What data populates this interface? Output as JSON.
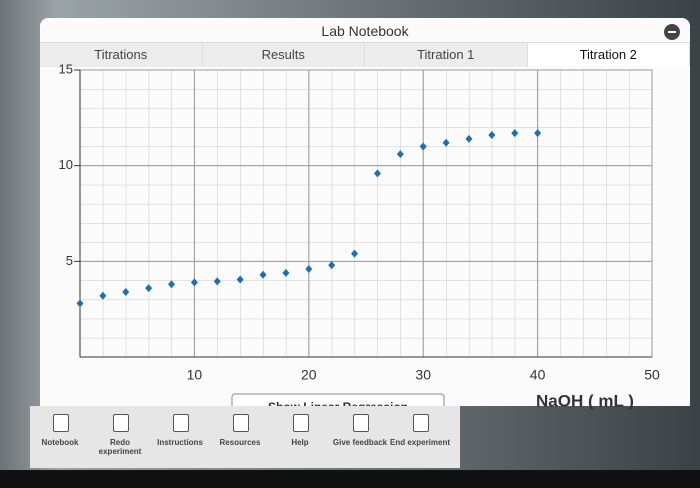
{
  "window": {
    "title": "Lab Notebook",
    "tabs": [
      "Titrations",
      "Results",
      "Titration 1",
      "Titration 2"
    ],
    "active_tab": 3
  },
  "chart_data": {
    "type": "scatter",
    "x_label": "NaOH ( mL )",
    "button": "Show Linear Regression",
    "xlim": [
      0,
      50
    ],
    "xticks": [
      10,
      20,
      30,
      40,
      50
    ],
    "ylim": [
      0,
      15
    ],
    "yticks": [
      5,
      10,
      15
    ],
    "grid": true,
    "series": [
      {
        "name": "Titration 2",
        "color": "#1f6db3",
        "x": [
          0,
          2,
          4,
          6,
          8,
          10,
          12,
          14,
          16,
          18,
          20,
          22,
          24,
          26,
          28,
          30,
          32,
          34,
          36,
          38,
          40
        ],
        "values": [
          2.8,
          3.2,
          3.4,
          3.6,
          3.8,
          3.9,
          3.95,
          4.05,
          4.3,
          4.4,
          4.6,
          4.8,
          5.4,
          9.6,
          10.6,
          11.0,
          11.2,
          11.4,
          11.6,
          11.7,
          11.7
        ]
      }
    ]
  },
  "toolbar": [
    "Notebook",
    "Redo experiment",
    "Instructions",
    "Resources",
    "Help",
    "Give feedback",
    "End experiment"
  ]
}
